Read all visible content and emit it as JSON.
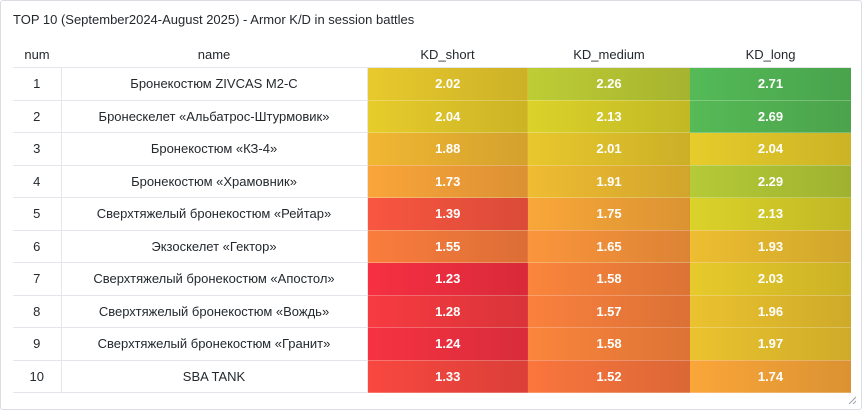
{
  "panel": {
    "title": "TOP 10 (September2024-August 2025) - Armor K/D in session battles"
  },
  "table": {
    "columns": [
      "num",
      "name",
      "KD_short",
      "KD_medium",
      "KD_long"
    ],
    "rows": [
      {
        "num": "1",
        "name": "Бронекостюм ZIVCAS M2-C",
        "short": "2.02",
        "medium": "2.26",
        "long": "2.71"
      },
      {
        "num": "2",
        "name": "Бронескелет «Альбатрос-Штурмовик»",
        "short": "2.04",
        "medium": "2.13",
        "long": "2.69"
      },
      {
        "num": "3",
        "name": "Бронекостюм «КЗ-4»",
        "short": "1.88",
        "medium": "2.01",
        "long": "2.04"
      },
      {
        "num": "4",
        "name": "Бронекостюм «Храмовник»",
        "short": "1.73",
        "medium": "1.91",
        "long": "2.29"
      },
      {
        "num": "5",
        "name": "Сверхтяжелый бронекостюм «Рейтар»",
        "short": "1.39",
        "medium": "1.75",
        "long": "2.13"
      },
      {
        "num": "6",
        "name": "Экзоскелет «Гектор»",
        "short": "1.55",
        "medium": "1.65",
        "long": "1.93"
      },
      {
        "num": "7",
        "name": "Сверхтяжелый бронекостюм «Апостол»",
        "short": "1.23",
        "medium": "1.58",
        "long": "2.03"
      },
      {
        "num": "8",
        "name": "Сверхтяжелый бронекостюм «Вождь»",
        "short": "1.28",
        "medium": "1.57",
        "long": "1.96"
      },
      {
        "num": "9",
        "name": "Сверхтяжелый бронекостюм «Гранит»",
        "short": "1.24",
        "medium": "1.58",
        "long": "1.97"
      },
      {
        "num": "10",
        "name": "SBA TANK",
        "short": "1.33",
        "medium": "1.52",
        "long": "1.74"
      }
    ]
  },
  "colors": {
    "low": "#e8263e",
    "mid_low": "#ee9838",
    "mid": "#d6c726",
    "high": "#4faf52"
  },
  "icons": {
    "resize": "resize-handle-icon"
  }
}
